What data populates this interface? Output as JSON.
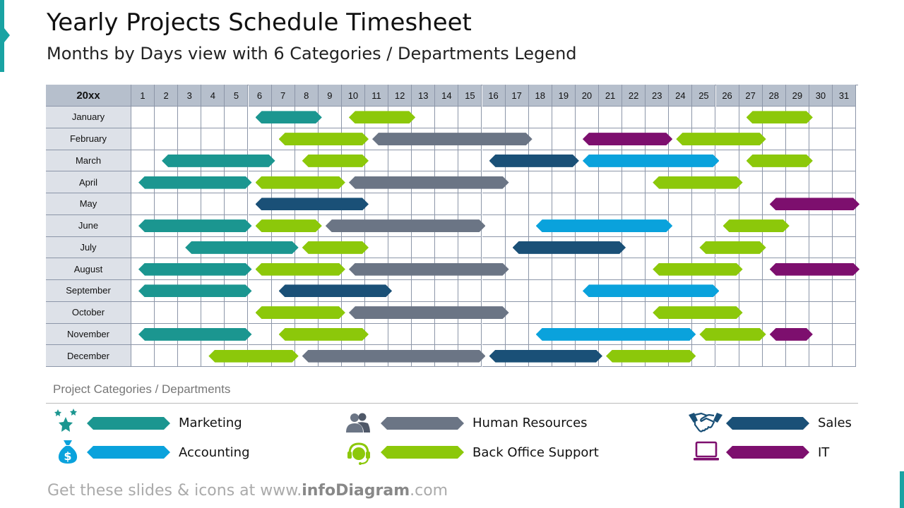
{
  "title": "Yearly Projects Schedule Timesheet",
  "subtitle": "Months by Days view with 6 Categories / Departments Legend",
  "corner_label": "20xx",
  "days": [
    "1",
    "2",
    "3",
    "4",
    "5",
    "6",
    "7",
    "8",
    "9",
    "10",
    "11",
    "12",
    "13",
    "14",
    "15",
    "16",
    "17",
    "18",
    "19",
    "20",
    "21",
    "22",
    "23",
    "24",
    "25",
    "26",
    "27",
    "28",
    "29",
    "30",
    "31"
  ],
  "months": [
    "January",
    "February",
    "March",
    "April",
    "May",
    "June",
    "July",
    "August",
    "September",
    "October",
    "November",
    "December"
  ],
  "categories": {
    "marketing": {
      "label": "Marketing",
      "color": "#1b9690",
      "icon": "stars-icon"
    },
    "hr": {
      "label": "Human Resources",
      "color": "#6b7585",
      "icon": "people-icon"
    },
    "sales": {
      "label": "Sales",
      "color": "#1a5077",
      "icon": "handshake-icon"
    },
    "accounting": {
      "label": "Accounting",
      "color": "#0aa2dc",
      "icon": "money-bag-icon"
    },
    "backoffice": {
      "label": "Back Office Support",
      "color": "#8cc80a",
      "icon": "headset-icon"
    },
    "it": {
      "label": "IT",
      "color": "#7d0f6e",
      "icon": "laptop-icon"
    }
  },
  "schedule": [
    {
      "month": "January",
      "bars": [
        {
          "cat": "marketing",
          "start": 6,
          "end": 8
        },
        {
          "cat": "backoffice",
          "start": 10,
          "end": 12
        },
        {
          "cat": "backoffice",
          "start": 27,
          "end": 29
        }
      ]
    },
    {
      "month": "February",
      "bars": [
        {
          "cat": "backoffice",
          "start": 7,
          "end": 10
        },
        {
          "cat": "hr",
          "start": 11,
          "end": 17
        },
        {
          "cat": "it",
          "start": 20,
          "end": 23
        },
        {
          "cat": "backoffice",
          "start": 24,
          "end": 27
        }
      ]
    },
    {
      "month": "March",
      "bars": [
        {
          "cat": "marketing",
          "start": 2,
          "end": 6
        },
        {
          "cat": "backoffice",
          "start": 8,
          "end": 10
        },
        {
          "cat": "sales",
          "start": 16,
          "end": 19
        },
        {
          "cat": "accounting",
          "start": 20,
          "end": 25
        },
        {
          "cat": "backoffice",
          "start": 27,
          "end": 29
        }
      ]
    },
    {
      "month": "April",
      "bars": [
        {
          "cat": "marketing",
          "start": 1,
          "end": 5
        },
        {
          "cat": "backoffice",
          "start": 6,
          "end": 9
        },
        {
          "cat": "hr",
          "start": 10,
          "end": 16
        },
        {
          "cat": "backoffice",
          "start": 23,
          "end": 26
        }
      ]
    },
    {
      "month": "May",
      "bars": [
        {
          "cat": "sales",
          "start": 6,
          "end": 10
        },
        {
          "cat": "it",
          "start": 28,
          "end": 31
        }
      ]
    },
    {
      "month": "June",
      "bars": [
        {
          "cat": "marketing",
          "start": 1,
          "end": 5
        },
        {
          "cat": "backoffice",
          "start": 6,
          "end": 8
        },
        {
          "cat": "hr",
          "start": 9,
          "end": 15
        },
        {
          "cat": "accounting",
          "start": 18,
          "end": 23
        },
        {
          "cat": "backoffice",
          "start": 26,
          "end": 28
        }
      ]
    },
    {
      "month": "July",
      "bars": [
        {
          "cat": "marketing",
          "start": 3,
          "end": 7
        },
        {
          "cat": "backoffice",
          "start": 8,
          "end": 10
        },
        {
          "cat": "sales",
          "start": 17,
          "end": 21
        },
        {
          "cat": "backoffice",
          "start": 25,
          "end": 27
        }
      ]
    },
    {
      "month": "August",
      "bars": [
        {
          "cat": "marketing",
          "start": 1,
          "end": 5
        },
        {
          "cat": "backoffice",
          "start": 6,
          "end": 9
        },
        {
          "cat": "hr",
          "start": 10,
          "end": 16
        },
        {
          "cat": "backoffice",
          "start": 23,
          "end": 26
        },
        {
          "cat": "it",
          "start": 28,
          "end": 31
        }
      ]
    },
    {
      "month": "September",
      "bars": [
        {
          "cat": "marketing",
          "start": 1,
          "end": 5
        },
        {
          "cat": "sales",
          "start": 7,
          "end": 11
        },
        {
          "cat": "accounting",
          "start": 20,
          "end": 25
        }
      ]
    },
    {
      "month": "October",
      "bars": [
        {
          "cat": "backoffice",
          "start": 6,
          "end": 9
        },
        {
          "cat": "hr",
          "start": 10,
          "end": 16
        },
        {
          "cat": "backoffice",
          "start": 23,
          "end": 26
        }
      ]
    },
    {
      "month": "November",
      "bars": [
        {
          "cat": "marketing",
          "start": 1,
          "end": 5
        },
        {
          "cat": "backoffice",
          "start": 7,
          "end": 10
        },
        {
          "cat": "accounting",
          "start": 18,
          "end": 24
        },
        {
          "cat": "backoffice",
          "start": 25,
          "end": 27
        },
        {
          "cat": "it",
          "start": 28,
          "end": 29
        }
      ]
    },
    {
      "month": "December",
      "bars": [
        {
          "cat": "backoffice",
          "start": 4,
          "end": 7
        },
        {
          "cat": "hr",
          "start": 8,
          "end": 15
        },
        {
          "cat": "sales",
          "start": 16,
          "end": 20
        },
        {
          "cat": "backoffice",
          "start": 21,
          "end": 24
        }
      ]
    }
  ],
  "legend": {
    "title": "Project Categories  /  Departments",
    "items": [
      {
        "cat": "marketing",
        "label": "Marketing"
      },
      {
        "cat": "hr",
        "label": "Human Resources"
      },
      {
        "cat": "sales",
        "label": "Sales"
      },
      {
        "cat": "accounting",
        "label": "Accounting"
      },
      {
        "cat": "backoffice",
        "label": "Back Office Support"
      },
      {
        "cat": "it",
        "label": "IT"
      }
    ]
  },
  "footer": {
    "prefix": "Get these slides & icons at www.",
    "brand": "infoDiagram",
    "suffix": ".com"
  }
}
